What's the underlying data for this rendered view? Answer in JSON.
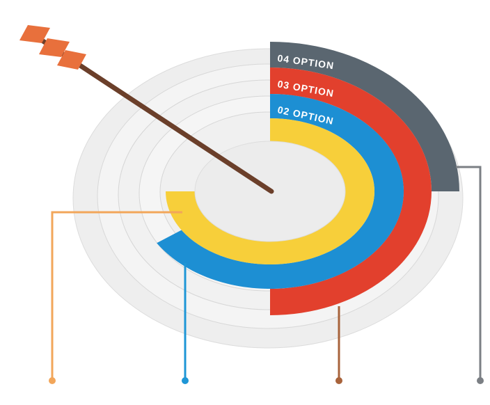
{
  "labels": [
    "04 OPTION",
    "03 OPTION",
    "02 OPTION"
  ]
}
